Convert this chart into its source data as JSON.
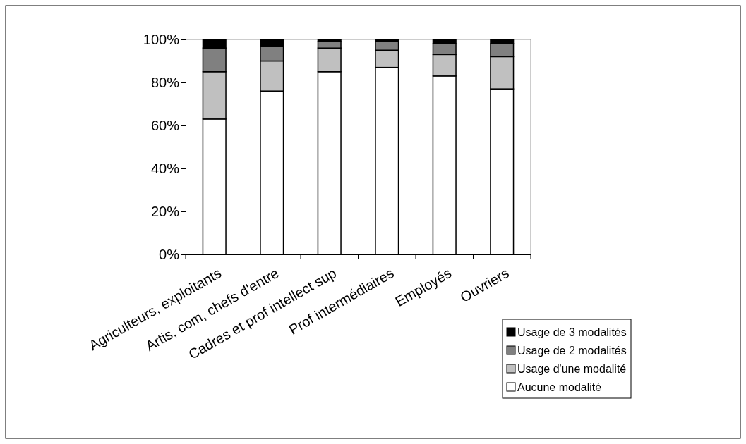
{
  "chart_data": {
    "type": "bar",
    "stacked": true,
    "categories": [
      "Agriculteurs, exploitants",
      "Artis, com, chefs d'entre",
      "Cadres et prof intellect sup",
      "Prof intermédiaires",
      "Employés",
      "Ouvriers"
    ],
    "series": [
      {
        "name": "Aucune modalité",
        "color": "#ffffff",
        "values": [
          63,
          76,
          85,
          87,
          83,
          77
        ]
      },
      {
        "name": "Usage d'une modalité",
        "color": "#c0c0c0",
        "values": [
          22,
          14,
          11,
          8,
          10,
          15
        ]
      },
      {
        "name": "Usage de 2 modalités",
        "color": "#808080",
        "values": [
          11,
          7,
          3,
          4,
          5,
          6
        ]
      },
      {
        "name": "Usage de 3 modalités",
        "color": "#000000",
        "values": [
          4,
          3,
          1,
          1,
          2,
          2
        ]
      }
    ],
    "ylim": [
      0,
      100
    ],
    "yticks": [
      {
        "value": 0,
        "label": "0%"
      },
      {
        "value": 20,
        "label": "20%"
      },
      {
        "value": 40,
        "label": "40%"
      },
      {
        "value": 60,
        "label": "60%"
      },
      {
        "value": 80,
        "label": "80%"
      },
      {
        "value": 100,
        "label": "100%"
      }
    ],
    "grid": false,
    "legend": "bottom right"
  }
}
